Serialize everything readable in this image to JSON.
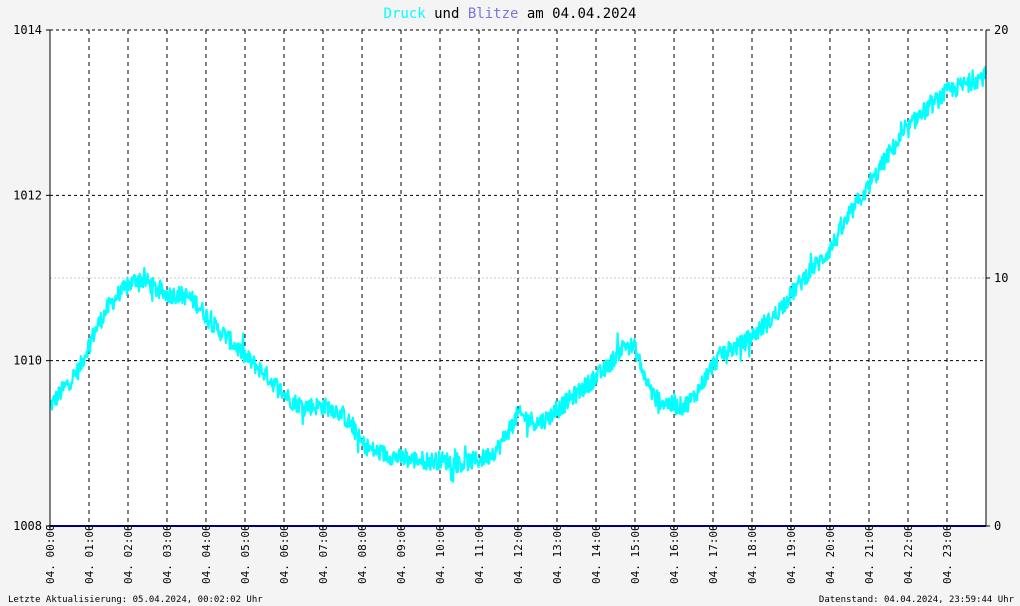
{
  "title": {
    "druck": "Druck",
    "und": " und ",
    "blitze": "Blitze",
    "am": " am 04.04.2024"
  },
  "footer": {
    "left": "Letzte Aktualisierung: 05.04.2024, 00:02:02 Uhr",
    "right": "Datenstand: 04.04.2024, 23:59:44 Uhr"
  },
  "colors": {
    "background": "#f4f4f4",
    "plot_background": "#ffffff",
    "pressure": "#00ffff",
    "lightning": "#000080",
    "blitze_title": "#7777dd",
    "grid": "#000000",
    "minor_grid": "#c8c8c8",
    "text": "#000000"
  },
  "chart_data": {
    "type": "line",
    "title": "Druck und Blitze am 04.04.2024",
    "x_ticks": [
      "04. 00:00",
      "04. 01:00",
      "04. 02:00",
      "04. 03:00",
      "04. 04:00",
      "04. 05:00",
      "04. 06:00",
      "04. 07:00",
      "04. 08:00",
      "04. 09:00",
      "04. 10:00",
      "04. 11:00",
      "04. 12:00",
      "04. 13:00",
      "04. 14:00",
      "04. 15:00",
      "04. 16:00",
      "04. 17:00",
      "04. 18:00",
      "04. 19:00",
      "04. 20:00",
      "04. 21:00",
      "04. 22:00",
      "04. 23:00"
    ],
    "x_range_hours": [
      0,
      24
    ],
    "y_left": {
      "range": [
        1008,
        1014
      ],
      "ticks": [
        "1008",
        "1010",
        "1012",
        "1014"
      ]
    },
    "y_right": {
      "range": [
        0,
        20
      ],
      "ticks": [
        "0",
        "10",
        "20"
      ]
    },
    "grid": true,
    "series": [
      {
        "name": "Druck",
        "axis": "left",
        "x": [
          0,
          0.25,
          0.5,
          0.75,
          1.0,
          1.25,
          1.5,
          1.75,
          2.0,
          2.25,
          2.5,
          2.75,
          3.0,
          3.25,
          3.5,
          3.75,
          4.0,
          4.25,
          4.5,
          4.75,
          5.0,
          5.25,
          5.5,
          5.75,
          6.0,
          6.25,
          6.5,
          6.75,
          7.0,
          7.25,
          7.5,
          7.75,
          8.0,
          8.25,
          8.5,
          8.75,
          9.0,
          9.25,
          9.5,
          9.75,
          10.0,
          10.25,
          10.5,
          10.75,
          11.0,
          11.25,
          11.5,
          11.75,
          12.0,
          12.25,
          12.5,
          12.75,
          13.0,
          13.25,
          13.5,
          13.75,
          14.0,
          14.25,
          14.5,
          14.75,
          15.0,
          15.25,
          15.5,
          15.75,
          16.0,
          16.25,
          16.5,
          16.75,
          17.0,
          17.25,
          17.5,
          17.75,
          18.0,
          18.25,
          18.5,
          18.75,
          19.0,
          19.25,
          19.5,
          19.75,
          20.0,
          20.25,
          20.5,
          20.75,
          21.0,
          21.25,
          21.5,
          21.75,
          22.0,
          22.25,
          22.5,
          22.75,
          23.0,
          23.25,
          23.5,
          23.75,
          24.0
        ],
        "values": [
          1009.45,
          1009.6,
          1009.75,
          1009.9,
          1010.2,
          1010.45,
          1010.65,
          1010.8,
          1010.9,
          1011.0,
          1010.95,
          1010.85,
          1010.8,
          1010.8,
          1010.78,
          1010.7,
          1010.55,
          1010.4,
          1010.3,
          1010.18,
          1010.05,
          1009.95,
          1009.85,
          1009.72,
          1009.6,
          1009.5,
          1009.45,
          1009.45,
          1009.45,
          1009.42,
          1009.35,
          1009.2,
          1009.0,
          1008.92,
          1008.88,
          1008.85,
          1008.82,
          1008.8,
          1008.8,
          1008.78,
          1008.8,
          1008.78,
          1008.75,
          1008.78,
          1008.8,
          1008.85,
          1008.95,
          1009.15,
          1009.35,
          1009.3,
          1009.25,
          1009.3,
          1009.4,
          1009.5,
          1009.6,
          1009.7,
          1009.8,
          1009.9,
          1010.05,
          1010.2,
          1010.15,
          1009.8,
          1009.55,
          1009.5,
          1009.45,
          1009.45,
          1009.55,
          1009.75,
          1009.95,
          1010.1,
          1010.15,
          1010.2,
          1010.3,
          1010.4,
          1010.5,
          1010.65,
          1010.8,
          1010.95,
          1011.1,
          1011.2,
          1011.35,
          1011.55,
          1011.75,
          1011.95,
          1012.1,
          1012.3,
          1012.5,
          1012.65,
          1012.8,
          1012.95,
          1013.05,
          1013.15,
          1013.25,
          1013.3,
          1013.35,
          1013.4,
          1013.45
        ]
      },
      {
        "name": "Blitze",
        "axis": "right",
        "x": [
          0,
          24
        ],
        "values": [
          0,
          0
        ]
      }
    ]
  }
}
